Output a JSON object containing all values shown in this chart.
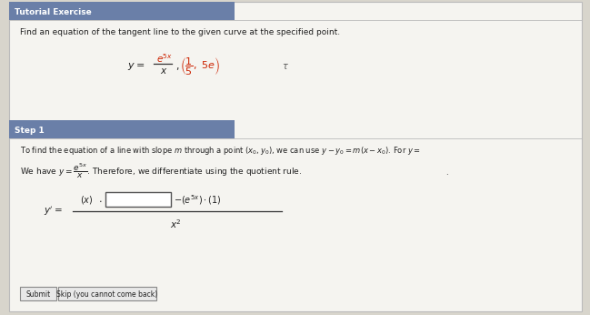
{
  "title": "Tutorial Exercise",
  "title_bg": "#6a7fa8",
  "title_fg": "white",
  "step1_label": "Step 1",
  "step1_bg": "#6a7fa8",
  "step1_fg": "white",
  "bg_color": "#d8d5cc",
  "panel_bg": "#f5f4f0",
  "border_color": "#bbbbbb",
  "line1": "Find an equation of the tangent line to the given curve at the specified point.",
  "submit_label": "Submit",
  "skip_label": "Skip (you cannot come back)"
}
